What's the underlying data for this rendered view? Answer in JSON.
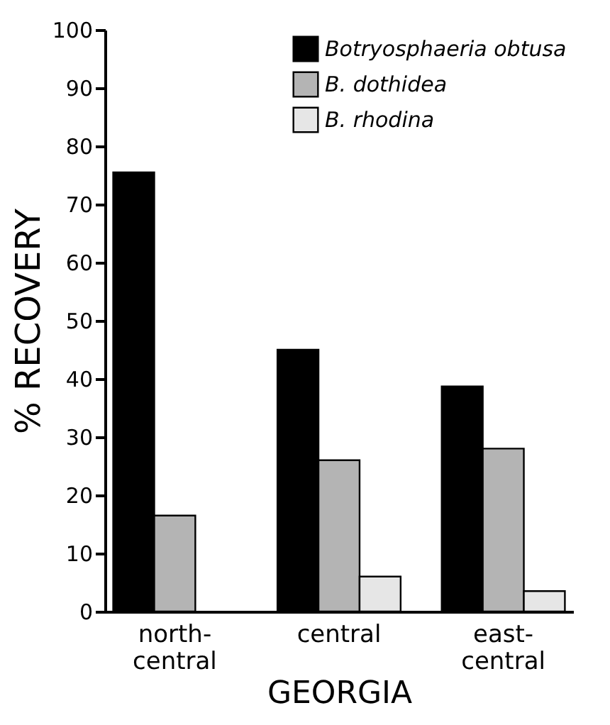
{
  "chart_data": {
    "type": "bar",
    "xlabel": "GEORGIA",
    "ylabel": "% RECOVERY",
    "categories": [
      "north-central",
      "central",
      "east-central"
    ],
    "series": [
      {
        "name": "Botryosphaeria obtusa",
        "color": "#000000",
        "values": [
          75.5,
          45,
          38.7
        ]
      },
      {
        "name": "B. dothidea",
        "color": "#b4b4b4",
        "values": [
          16.5,
          26,
          28
        ]
      },
      {
        "name": "B. rhodina",
        "color": "#e6e6e6",
        "values": [
          null,
          6,
          3.5
        ]
      }
    ],
    "ylim": [
      0,
      100
    ],
    "yticks": [
      0,
      10,
      20,
      30,
      40,
      50,
      60,
      70,
      80,
      90,
      100
    ],
    "grid": false,
    "legend": "top right"
  }
}
